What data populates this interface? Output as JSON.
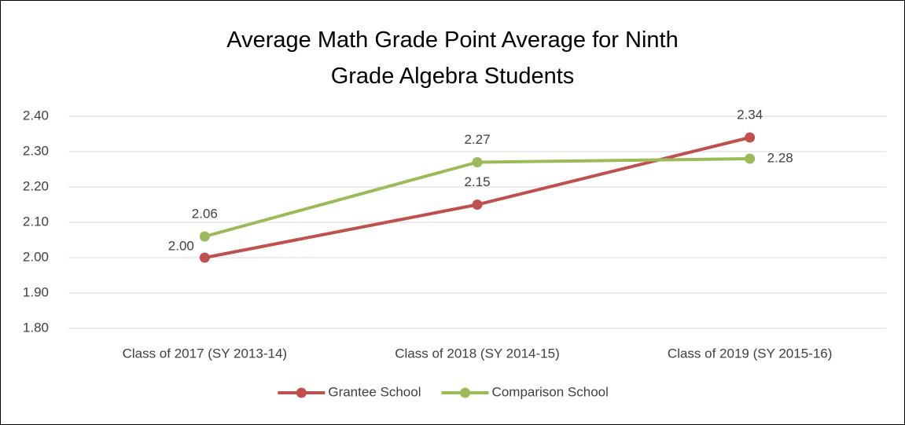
{
  "chart_data": {
    "type": "line",
    "title": "Average Math Grade Point Average for Ninth Grade Algebra Students",
    "categories": [
      "Class of 2017 (SY 2013-14)",
      "Class of 2018 (SY 2014-15)",
      "Class of 2019 (SY 2015-16)"
    ],
    "series": [
      {
        "name": "Grantee School",
        "color": "#c0504d",
        "values": [
          2.0,
          2.15,
          2.34
        ],
        "value_labels": [
          "2.00",
          "2.15",
          "2.34"
        ]
      },
      {
        "name": "Comparison School",
        "color": "#9bbb59",
        "values": [
          2.06,
          2.27,
          2.28
        ],
        "value_labels": [
          "2.06",
          "2.27",
          "2.28"
        ]
      }
    ],
    "ylim": [
      1.8,
      2.4
    ],
    "yticks": [
      {
        "value": 1.8,
        "label": "1.80"
      },
      {
        "value": 1.9,
        "label": "1.90"
      },
      {
        "value": 2.0,
        "label": "2.00"
      },
      {
        "value": 2.1,
        "label": "2.10"
      },
      {
        "value": 2.2,
        "label": "2.20"
      },
      {
        "value": 2.3,
        "label": "2.30"
      },
      {
        "value": 2.4,
        "label": "2.40"
      }
    ],
    "grid": true,
    "legend": "bottom"
  }
}
